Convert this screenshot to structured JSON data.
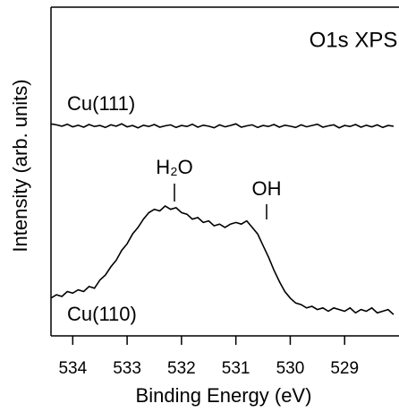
{
  "chart_data": {
    "type": "line",
    "title": "O1s XPS",
    "x_label": "Binding Energy (eV)",
    "y_label": "Intensity (arb. units)",
    "x": [
      534.4,
      534.3,
      534.2,
      534.1,
      534.0,
      533.9,
      533.8,
      533.7,
      533.6,
      533.5,
      533.4,
      533.3,
      533.2,
      533.1,
      533.0,
      532.9,
      532.8,
      532.7,
      532.6,
      532.5,
      532.4,
      532.3,
      532.2,
      532.1,
      532.0,
      531.9,
      531.8,
      531.7,
      531.6,
      531.5,
      531.4,
      531.3,
      531.2,
      531.1,
      531.0,
      530.9,
      530.8,
      530.7,
      530.6,
      530.5,
      530.4,
      530.3,
      530.2,
      530.1,
      530.0,
      529.9,
      529.8,
      529.7,
      529.6,
      529.5,
      529.4,
      529.3,
      529.2,
      529.1,
      529.0,
      528.9,
      528.8,
      528.7,
      528.6,
      528.5,
      528.4,
      528.3,
      528.2,
      528.1
    ],
    "series": [
      {
        "name": "Cu(111)",
        "color": "#000000",
        "values": [
          6.45,
          6.42,
          6.38,
          6.44,
          6.36,
          6.41,
          6.35,
          6.43,
          6.37,
          6.4,
          6.34,
          6.42,
          6.38,
          6.45,
          6.36,
          6.4,
          6.33,
          6.41,
          6.37,
          6.43,
          6.35,
          6.39,
          6.42,
          6.34,
          6.4,
          6.37,
          6.44,
          6.35,
          6.41,
          6.38,
          6.33,
          6.42,
          6.36,
          6.4,
          6.45,
          6.35,
          6.39,
          6.42,
          6.34,
          6.4,
          6.37,
          6.43,
          6.35,
          6.41,
          6.38,
          6.34,
          6.42,
          6.36,
          6.4,
          6.44,
          6.35,
          6.39,
          6.42,
          6.33,
          6.4,
          6.37,
          6.43,
          6.35,
          6.41,
          6.36,
          6.42,
          6.34,
          6.4,
          6.38
        ]
      },
      {
        "name": "Cu(110)",
        "color": "#000000",
        "values": [
          1.15,
          1.25,
          1.2,
          1.35,
          1.3,
          1.4,
          1.35,
          1.5,
          1.45,
          1.7,
          1.85,
          2.1,
          2.3,
          2.6,
          2.8,
          3.1,
          3.3,
          3.55,
          3.75,
          3.85,
          3.8,
          3.95,
          3.85,
          3.9,
          3.75,
          3.7,
          3.55,
          3.6,
          3.45,
          3.5,
          3.35,
          3.4,
          3.3,
          3.4,
          3.45,
          3.4,
          3.5,
          3.3,
          3.1,
          2.75,
          2.4,
          2.0,
          1.65,
          1.35,
          1.15,
          1.0,
          0.95,
          0.85,
          0.9,
          0.8,
          0.85,
          0.75,
          0.85,
          0.8,
          0.75,
          0.85,
          0.7,
          0.8,
          0.75,
          0.85,
          0.7,
          0.75,
          0.8,
          0.65
        ]
      }
    ],
    "annotations": [
      "H₂O",
      "OH"
    ],
    "xlim": [
      534.4,
      528.0
    ],
    "xticks": [
      534,
      533,
      532,
      531,
      530,
      529
    ],
    "ylim": [
      0,
      10
    ]
  }
}
